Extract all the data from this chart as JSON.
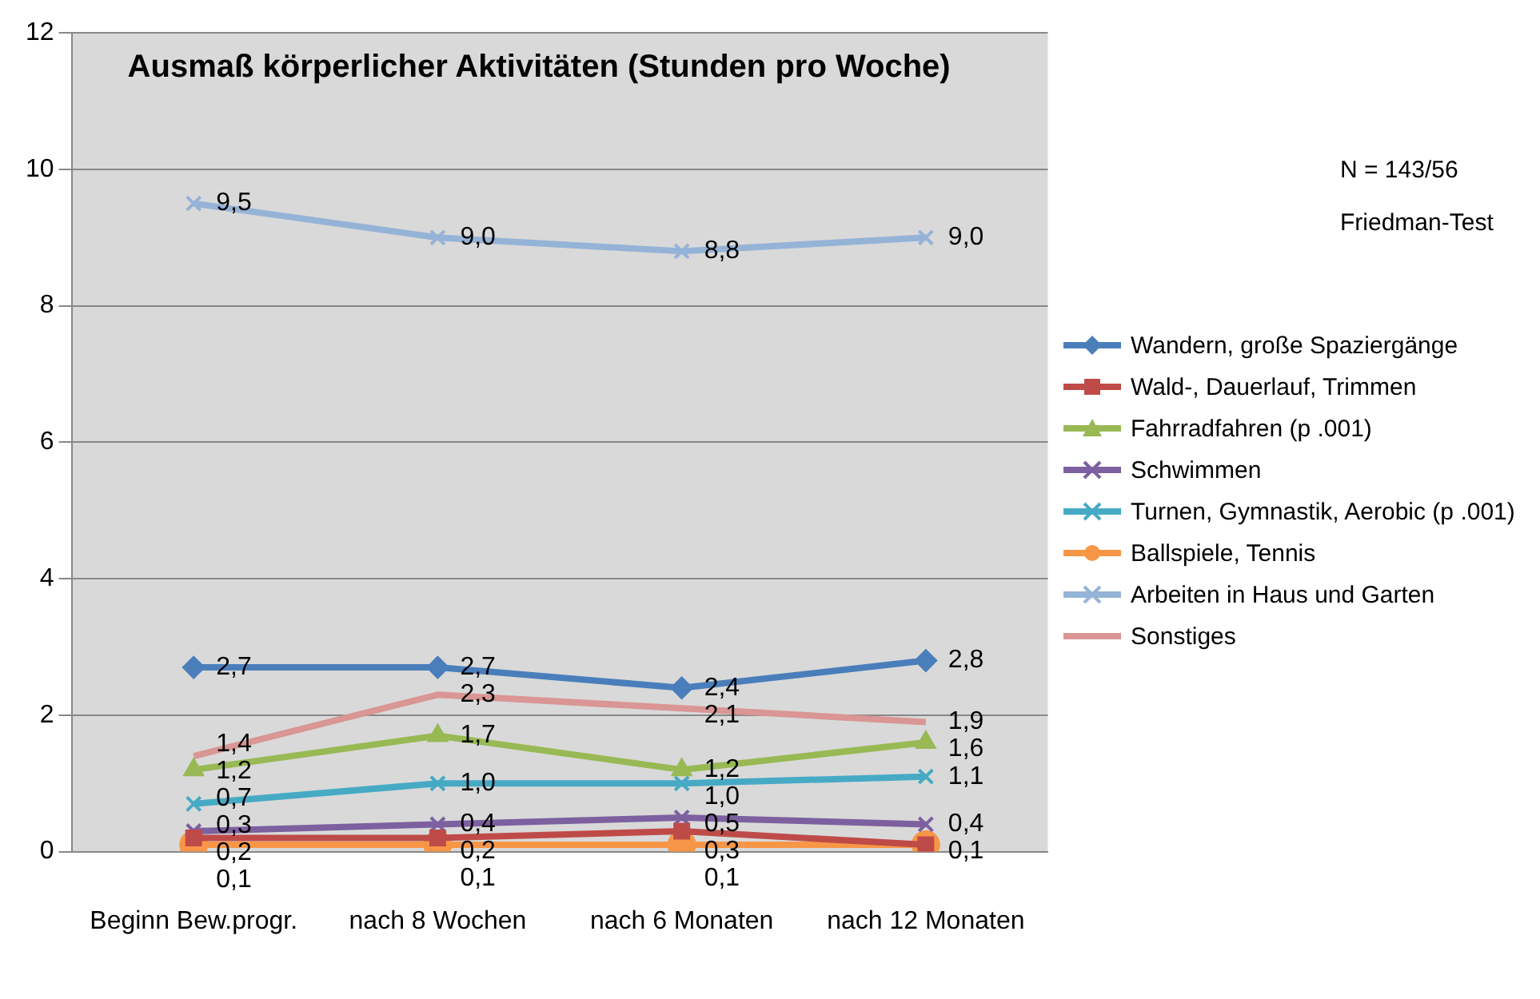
{
  "chart_data": {
    "type": "line",
    "title": "Ausmaß körperlicher Aktivitäten (Stunden pro Woche)",
    "categories": [
      "Beginn Bew.progr.",
      "nach 8 Wochen",
      "nach 6 Monaten",
      "nach 12 Monaten"
    ],
    "series": [
      {
        "name": "Wandern, große Spaziergänge",
        "color": "#4a7ebb",
        "marker": "diamond",
        "values": [
          2.7,
          2.7,
          2.4,
          2.8
        ],
        "value_labels": [
          "2,7",
          "2,7",
          "2,4",
          "2,8"
        ]
      },
      {
        "name": "Wald-, Dauerlauf, Trimmen",
        "color": "#be4b48",
        "marker": "square",
        "values": [
          0.2,
          0.2,
          0.3,
          0.1
        ],
        "value_labels": [
          "0,2",
          "0,2",
          "0,3",
          "0,1"
        ]
      },
      {
        "name": "Fahrradfahren (p .001)",
        "color": "#98b954",
        "marker": "triangle",
        "values": [
          1.2,
          1.7,
          1.2,
          1.6
        ],
        "value_labels": [
          "1,2",
          "1,7",
          "1,2",
          "1,6"
        ]
      },
      {
        "name": "Schwimmen",
        "color": "#7d60a0",
        "marker": "cross",
        "values": [
          0.3,
          0.4,
          0.5,
          0.4
        ],
        "value_labels": [
          "0,3",
          "0,4",
          "0,5",
          "0,4"
        ]
      },
      {
        "name": "Turnen, Gymnastik, Aerobic (p .001)",
        "color": "#46aac5",
        "marker": "cross",
        "values": [
          0.7,
          1.0,
          1.0,
          1.1
        ],
        "value_labels": [
          "0,7",
          "1,0",
          "1,0",
          "1,1"
        ]
      },
      {
        "name": "Ballspiele, Tennis",
        "color": "#f79646",
        "marker": "circle",
        "values": [
          0.1,
          0.1,
          0.1,
          0.1
        ],
        "value_labels": [
          "0,1",
          "0,1",
          "0,1",
          null
        ]
      },
      {
        "name": "Arbeiten in Haus und Garten",
        "color": "#95b3d7",
        "marker": "cross",
        "values": [
          9.5,
          9.0,
          8.8,
          9.0
        ],
        "value_labels": [
          "9,5",
          "9,0",
          "8,8",
          "9,0"
        ]
      },
      {
        "name": "Sonstiges",
        "color": "#d99694",
        "marker": "none",
        "values": [
          1.4,
          2.3,
          2.1,
          1.9
        ],
        "value_labels": [
          "1,4",
          "2,3",
          "2,1",
          "1,9"
        ]
      }
    ],
    "ylim": [
      0,
      12
    ],
    "yticks": [
      0,
      2,
      4,
      6,
      8,
      10,
      12
    ],
    "grid": "y",
    "legend": "right",
    "annotations": [
      "N = 143/56",
      "Friedman-Test"
    ]
  }
}
